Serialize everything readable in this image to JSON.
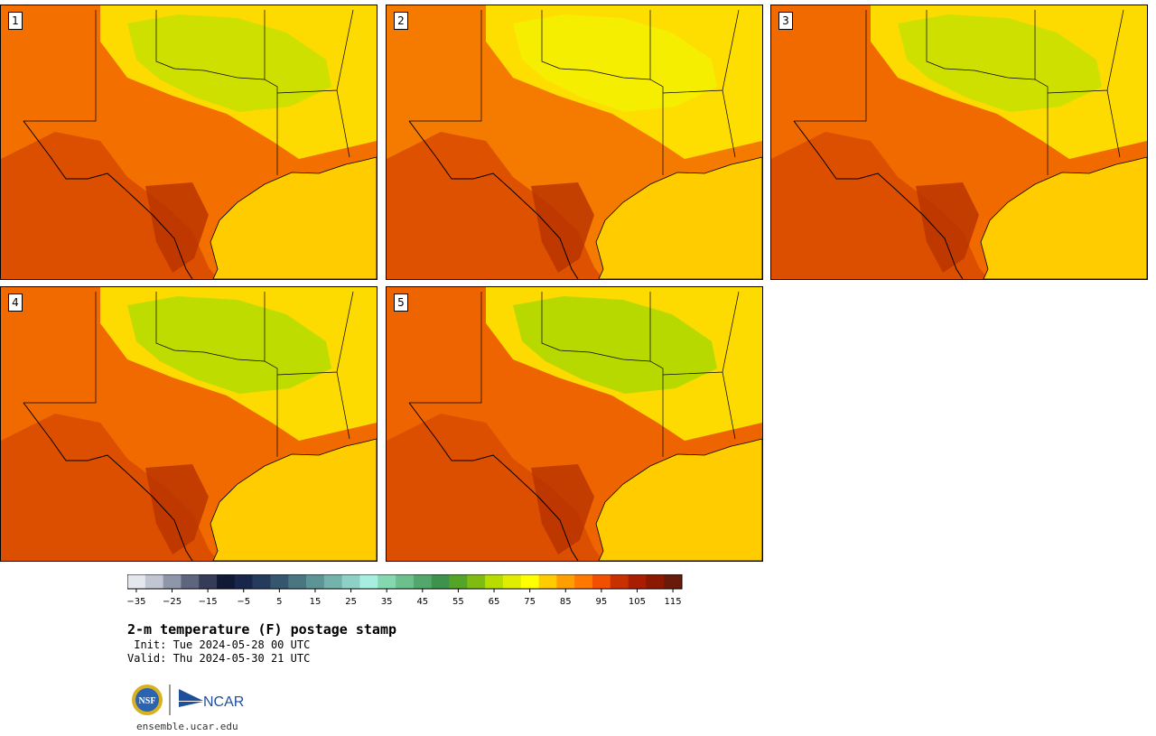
{
  "panels": [
    {
      "label": "1",
      "tint": "#f26f00",
      "cool": "#c8e000"
    },
    {
      "label": "2",
      "tint": "#f47b00",
      "cool": "#f4f000"
    },
    {
      "label": "3",
      "tint": "#f06a00",
      "cool": "#c8e000"
    },
    {
      "label": "4",
      "tint": "#f06a00",
      "cool": "#b8dc00"
    },
    {
      "label": "5",
      "tint": "#ee6400",
      "cool": "#b0d800"
    }
  ],
  "colorbar": {
    "colors": [
      "#e4e8ee",
      "#c2c6d2",
      "#9096aa",
      "#5e667e",
      "#343c58",
      "#111a34",
      "#17264a",
      "#253b5c",
      "#34566e",
      "#4a7682",
      "#5d9496",
      "#74b3ac",
      "#8ed0c6",
      "#a6eee0",
      "#84d8b0",
      "#6cc08e",
      "#52a86c",
      "#3e924c",
      "#54a428",
      "#80bc10",
      "#b8dc00",
      "#e0ec00",
      "#ffff00",
      "#ffcc00",
      "#ff9e00",
      "#ff7800",
      "#f05000",
      "#c83000",
      "#a81e00",
      "#8c1800",
      "#6a1a08"
    ],
    "ticks": [
      "−35",
      "−25",
      "−15",
      "−5",
      "5",
      "15",
      "25",
      "35",
      "45",
      "55",
      "65",
      "75",
      "85",
      "95",
      "105",
      "115"
    ]
  },
  "title": "2-m temperature (F) postage stamp",
  "init": " Init: Tue 2024-05-28 00 UTC",
  "valid": "Valid: Thu 2024-05-30 21 UTC",
  "logos": {
    "nsf": "NSF",
    "ncar": "NCAR"
  },
  "website": "ensemble.ucar.edu",
  "colors": {
    "gulf": "#ffcc00",
    "hot": "#d84a00",
    "hottest": "#b83200",
    "mild": "#ffee00",
    "border": "#000000"
  }
}
